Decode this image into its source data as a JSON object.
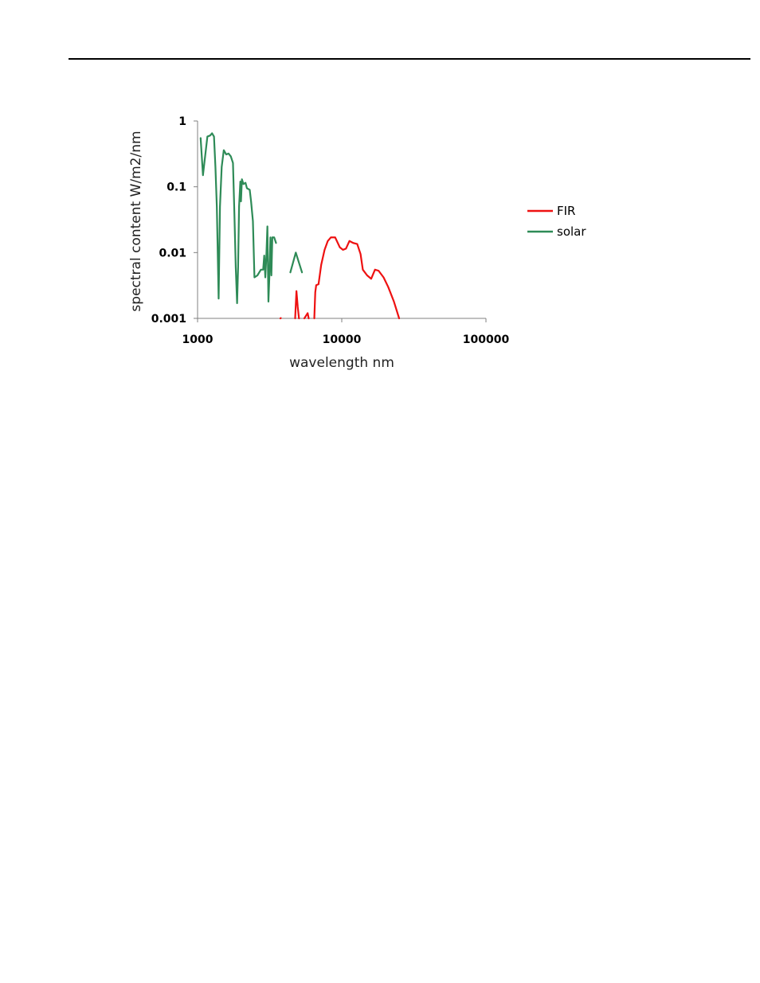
{
  "chart_data": {
    "type": "line",
    "title": "",
    "xlabel": "wavelength nm",
    "ylabel": "spectral content W/m2/nm",
    "x_scale": "log",
    "y_scale": "log",
    "xlim": [
      1000,
      100000
    ],
    "ylim": [
      0.001,
      1
    ],
    "x_ticks": [
      "1000",
      "10000",
      "100000"
    ],
    "y_ticks": [
      "1",
      "0.1",
      "0.01",
      "0.001"
    ],
    "grid": false,
    "legend_position": "right",
    "series": [
      {
        "name": "FIR",
        "color": "#ee1111",
        "segments": [
          [
            [
              3750,
              0.001
            ],
            [
              3780,
              0.00101
            ]
          ],
          [
            [
              4750,
              0.001
            ],
            [
              4850,
              0.0026
            ],
            [
              4950,
              0.0015
            ],
            [
              5050,
              0.001
            ]
          ],
          [
            [
              5500,
              0.001
            ],
            [
              5800,
              0.0012
            ],
            [
              5900,
              0.001
            ]
          ],
          [
            [
              6450,
              0.001
            ],
            [
              6550,
              0.0025
            ],
            [
              6650,
              0.0032
            ],
            [
              6900,
              0.0033
            ],
            [
              7200,
              0.0065
            ],
            [
              7600,
              0.011
            ],
            [
              8000,
              0.015
            ],
            [
              8400,
              0.017
            ],
            [
              9000,
              0.017
            ],
            [
              9700,
              0.012
            ],
            [
              10200,
              0.011
            ],
            [
              10700,
              0.0115
            ],
            [
              11300,
              0.015
            ],
            [
              12000,
              0.014
            ],
            [
              12800,
              0.0135
            ],
            [
              13500,
              0.0095
            ],
            [
              14000,
              0.0055
            ],
            [
              15000,
              0.0045
            ],
            [
              16000,
              0.004
            ],
            [
              17000,
              0.0055
            ],
            [
              18000,
              0.0053
            ],
            [
              19500,
              0.0042
            ],
            [
              21000,
              0.003
            ],
            [
              23000,
              0.0018
            ],
            [
              25000,
              0.001
            ]
          ]
        ]
      },
      {
        "name": "solar",
        "color": "#2e8b57",
        "segments": [
          [
            [
              1050,
              0.55
            ],
            [
              1090,
              0.15
            ],
            [
              1130,
              0.3
            ],
            [
              1170,
              0.58
            ],
            [
              1220,
              0.6
            ],
            [
              1260,
              0.65
            ],
            [
              1300,
              0.58
            ],
            [
              1330,
              0.2
            ],
            [
              1360,
              0.05
            ],
            [
              1400,
              0.002
            ],
            [
              1430,
              0.05
            ],
            [
              1470,
              0.2
            ],
            [
              1520,
              0.36
            ],
            [
              1580,
              0.31
            ],
            [
              1640,
              0.32
            ],
            [
              1700,
              0.29
            ],
            [
              1760,
              0.23
            ],
            [
              1800,
              0.04
            ],
            [
              1840,
              0.006
            ],
            [
              1880,
              0.0017
            ],
            [
              1910,
              0.006
            ],
            [
              1940,
              0.05
            ],
            [
              1980,
              0.12
            ],
            [
              2000,
              0.06
            ],
            [
              2030,
              0.13
            ],
            [
              2080,
              0.11
            ],
            [
              2150,
              0.115
            ],
            [
              2200,
              0.095
            ],
            [
              2300,
              0.09
            ],
            [
              2350,
              0.06
            ],
            [
              2420,
              0.03
            ],
            [
              2480,
              0.0042
            ],
            [
              2600,
              0.0045
            ],
            [
              2750,
              0.0055
            ],
            [
              2850,
              0.0055
            ],
            [
              2900,
              0.009
            ],
            [
              2950,
              0.0042
            ],
            [
              3000,
              0.009
            ],
            [
              3050,
              0.025
            ],
            [
              3100,
              0.0018
            ],
            [
              3150,
              0.0045
            ],
            [
              3200,
              0.017
            ],
            [
              3250,
              0.0045
            ],
            [
              3300,
              0.017
            ],
            [
              3400,
              0.017
            ],
            [
              3500,
              0.014
            ]
          ],
          [
            [
              4400,
              0.005
            ],
            [
              4800,
              0.01
            ],
            [
              5300,
              0.005
            ]
          ]
        ]
      }
    ]
  }
}
